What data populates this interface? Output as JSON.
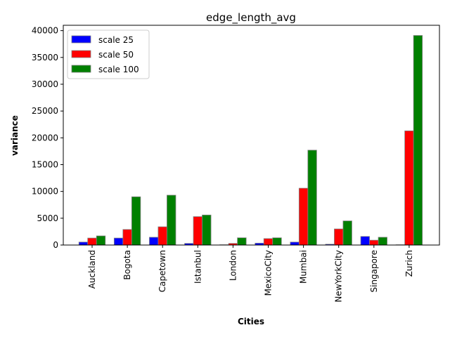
{
  "chart_data": {
    "type": "bar",
    "title": "edge_length_avg",
    "xlabel": "Cities",
    "ylabel": "variance",
    "categories": [
      "Auckland",
      "Bogota",
      "Capetown",
      "Istanbul",
      "London",
      "MexicoCity",
      "Mumbai",
      "NewYorkCity",
      "Singapore",
      "Zurich"
    ],
    "series": [
      {
        "name": "scale 25",
        "color": "#0000ff",
        "values": [
          550,
          1300,
          1450,
          300,
          50,
          350,
          550,
          150,
          1600,
          50
        ]
      },
      {
        "name": "scale 50",
        "color": "#ff0000",
        "values": [
          1300,
          2900,
          3400,
          5300,
          300,
          1200,
          10600,
          3000,
          900,
          21300
        ]
      },
      {
        "name": "scale 100",
        "color": "#008000",
        "values": [
          1700,
          9000,
          9300,
          5600,
          1350,
          1350,
          17700,
          4500,
          1450,
          39100
        ]
      }
    ],
    "ylim": [
      0,
      41000
    ],
    "yticks": [
      0,
      5000,
      10000,
      15000,
      20000,
      25000,
      30000,
      35000,
      40000
    ],
    "legend": "top-left",
    "grid": false
  }
}
